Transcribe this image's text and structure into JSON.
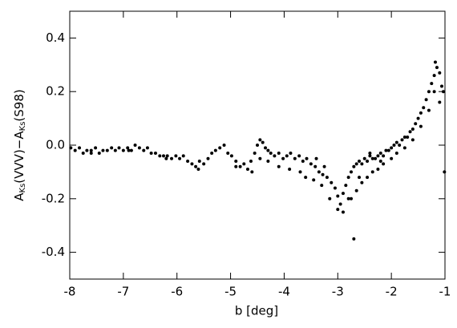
{
  "chart_data": {
    "type": "scatter",
    "x_label": "b [deg]",
    "y_label_parts": [
      "A",
      "Ks",
      "(VVV)−A",
      "Ks",
      "(S98)"
    ],
    "xlim": [
      -8,
      -1
    ],
    "ylim": [
      -0.5,
      0.5
    ],
    "xticks": [
      -8,
      -7,
      -6,
      -5,
      -4,
      -3,
      -2,
      -1
    ],
    "yticks": [
      -0.4,
      -0.2,
      {
        "value": 0,
        "label": "0.0"
      },
      0.2,
      0.4
    ],
    "color": "#000000",
    "series": [
      {
        "name": "points",
        "color": "#000000",
        "x": [
          -7.98,
          -7.9,
          -7.82,
          -7.75,
          -7.68,
          -7.6,
          -7.52,
          -7.45,
          -7.38,
          -7.3,
          -7.22,
          -7.15,
          -7.08,
          -7.0,
          -6.92,
          -6.85,
          -6.78,
          -6.7,
          -6.62,
          -6.55,
          -6.48,
          -6.4,
          -6.32,
          -6.25,
          -6.18,
          -6.1,
          -6.02,
          -5.95,
          -5.88,
          -5.8,
          -5.72,
          -5.65,
          -5.58,
          -5.5,
          -5.42,
          -5.35,
          -5.28,
          -5.2,
          -5.12,
          -5.05,
          -4.98,
          -4.9,
          -4.82,
          -4.75,
          -4.68,
          -4.62,
          -4.55,
          -4.5,
          -4.45,
          -4.4,
          -4.35,
          -4.3,
          -4.25,
          -4.18,
          -4.1,
          -4.02,
          -3.95,
          -3.88,
          -3.8,
          -3.72,
          -3.65,
          -3.58,
          -3.5,
          -3.42,
          -3.35,
          -3.28,
          -3.2,
          -3.12,
          -3.05,
          -3.0,
          -2.95,
          -2.9,
          -2.85,
          -2.8,
          -2.75,
          -2.7,
          -2.65,
          -2.6,
          -2.55,
          -2.5,
          -2.45,
          -2.4,
          -2.35,
          -2.3,
          -2.25,
          -2.2,
          -2.15,
          -2.1,
          -2.05,
          -2.0,
          -1.95,
          -1.9,
          -1.85,
          -1.8,
          -1.75,
          -1.7,
          -1.65,
          -1.6,
          -1.55,
          -1.5,
          -1.45,
          -1.4,
          -1.35,
          -1.3,
          -1.25,
          -1.2,
          -1.15,
          -1.1,
          -1.06,
          -1.03,
          -1.01,
          -7.6,
          -6.9,
          -6.2,
          -5.6,
          -4.9,
          -4.6,
          -4.45,
          -4.3,
          -4.1,
          -3.9,
          -3.7,
          -3.6,
          -3.45,
          -3.3,
          -3.15,
          -3.0,
          -2.9,
          -2.8,
          -2.7,
          -2.65,
          -2.55,
          -2.45,
          -2.35,
          -2.25,
          -2.15,
          -2.0,
          -1.9,
          -1.75,
          -1.6,
          -1.45,
          -1.3,
          -1.2,
          -1.18,
          -1.1,
          -3.4,
          -3.25,
          -2.75,
          -2.6,
          -2.4,
          -2.2
        ],
        "values": [
          -0.01,
          -0.02,
          -0.01,
          -0.03,
          -0.02,
          -0.02,
          -0.01,
          -0.03,
          -0.02,
          -0.02,
          -0.01,
          -0.02,
          -0.01,
          -0.02,
          -0.01,
          -0.02,
          0.0,
          -0.01,
          -0.02,
          -0.01,
          -0.03,
          -0.03,
          -0.04,
          -0.04,
          -0.04,
          -0.05,
          -0.04,
          -0.05,
          -0.04,
          -0.06,
          -0.07,
          -0.08,
          -0.06,
          -0.07,
          -0.05,
          -0.03,
          -0.02,
          -0.01,
          0.0,
          -0.03,
          -0.04,
          -0.06,
          -0.08,
          -0.07,
          -0.09,
          -0.06,
          -0.03,
          0.0,
          0.02,
          0.01,
          -0.01,
          -0.02,
          -0.03,
          -0.04,
          -0.03,
          -0.05,
          -0.04,
          -0.03,
          -0.05,
          -0.04,
          -0.06,
          -0.05,
          -0.07,
          -0.08,
          -0.1,
          -0.11,
          -0.12,
          -0.14,
          -0.16,
          -0.19,
          -0.22,
          -0.18,
          -0.15,
          -0.12,
          -0.1,
          -0.08,
          -0.07,
          -0.06,
          -0.07,
          -0.05,
          -0.06,
          -0.04,
          -0.05,
          -0.05,
          -0.04,
          -0.03,
          -0.04,
          -0.02,
          -0.02,
          -0.01,
          0.0,
          0.01,
          0.0,
          0.02,
          0.03,
          0.03,
          0.05,
          0.06,
          0.08,
          0.1,
          0.12,
          0.14,
          0.17,
          0.2,
          0.23,
          0.26,
          0.29,
          0.27,
          0.22,
          0.2,
          -0.1,
          -0.03,
          -0.02,
          -0.05,
          -0.09,
          -0.08,
          -0.1,
          -0.05,
          -0.06,
          -0.08,
          -0.09,
          -0.1,
          -0.12,
          -0.13,
          -0.15,
          -0.2,
          -0.24,
          -0.25,
          -0.2,
          -0.35,
          -0.17,
          -0.14,
          -0.12,
          -0.1,
          -0.09,
          -0.07,
          -0.05,
          -0.03,
          -0.01,
          0.02,
          0.07,
          0.13,
          0.2,
          0.31,
          0.16,
          -0.05,
          -0.08,
          -0.2,
          -0.12,
          -0.03,
          -0.06
        ]
      }
    ]
  }
}
